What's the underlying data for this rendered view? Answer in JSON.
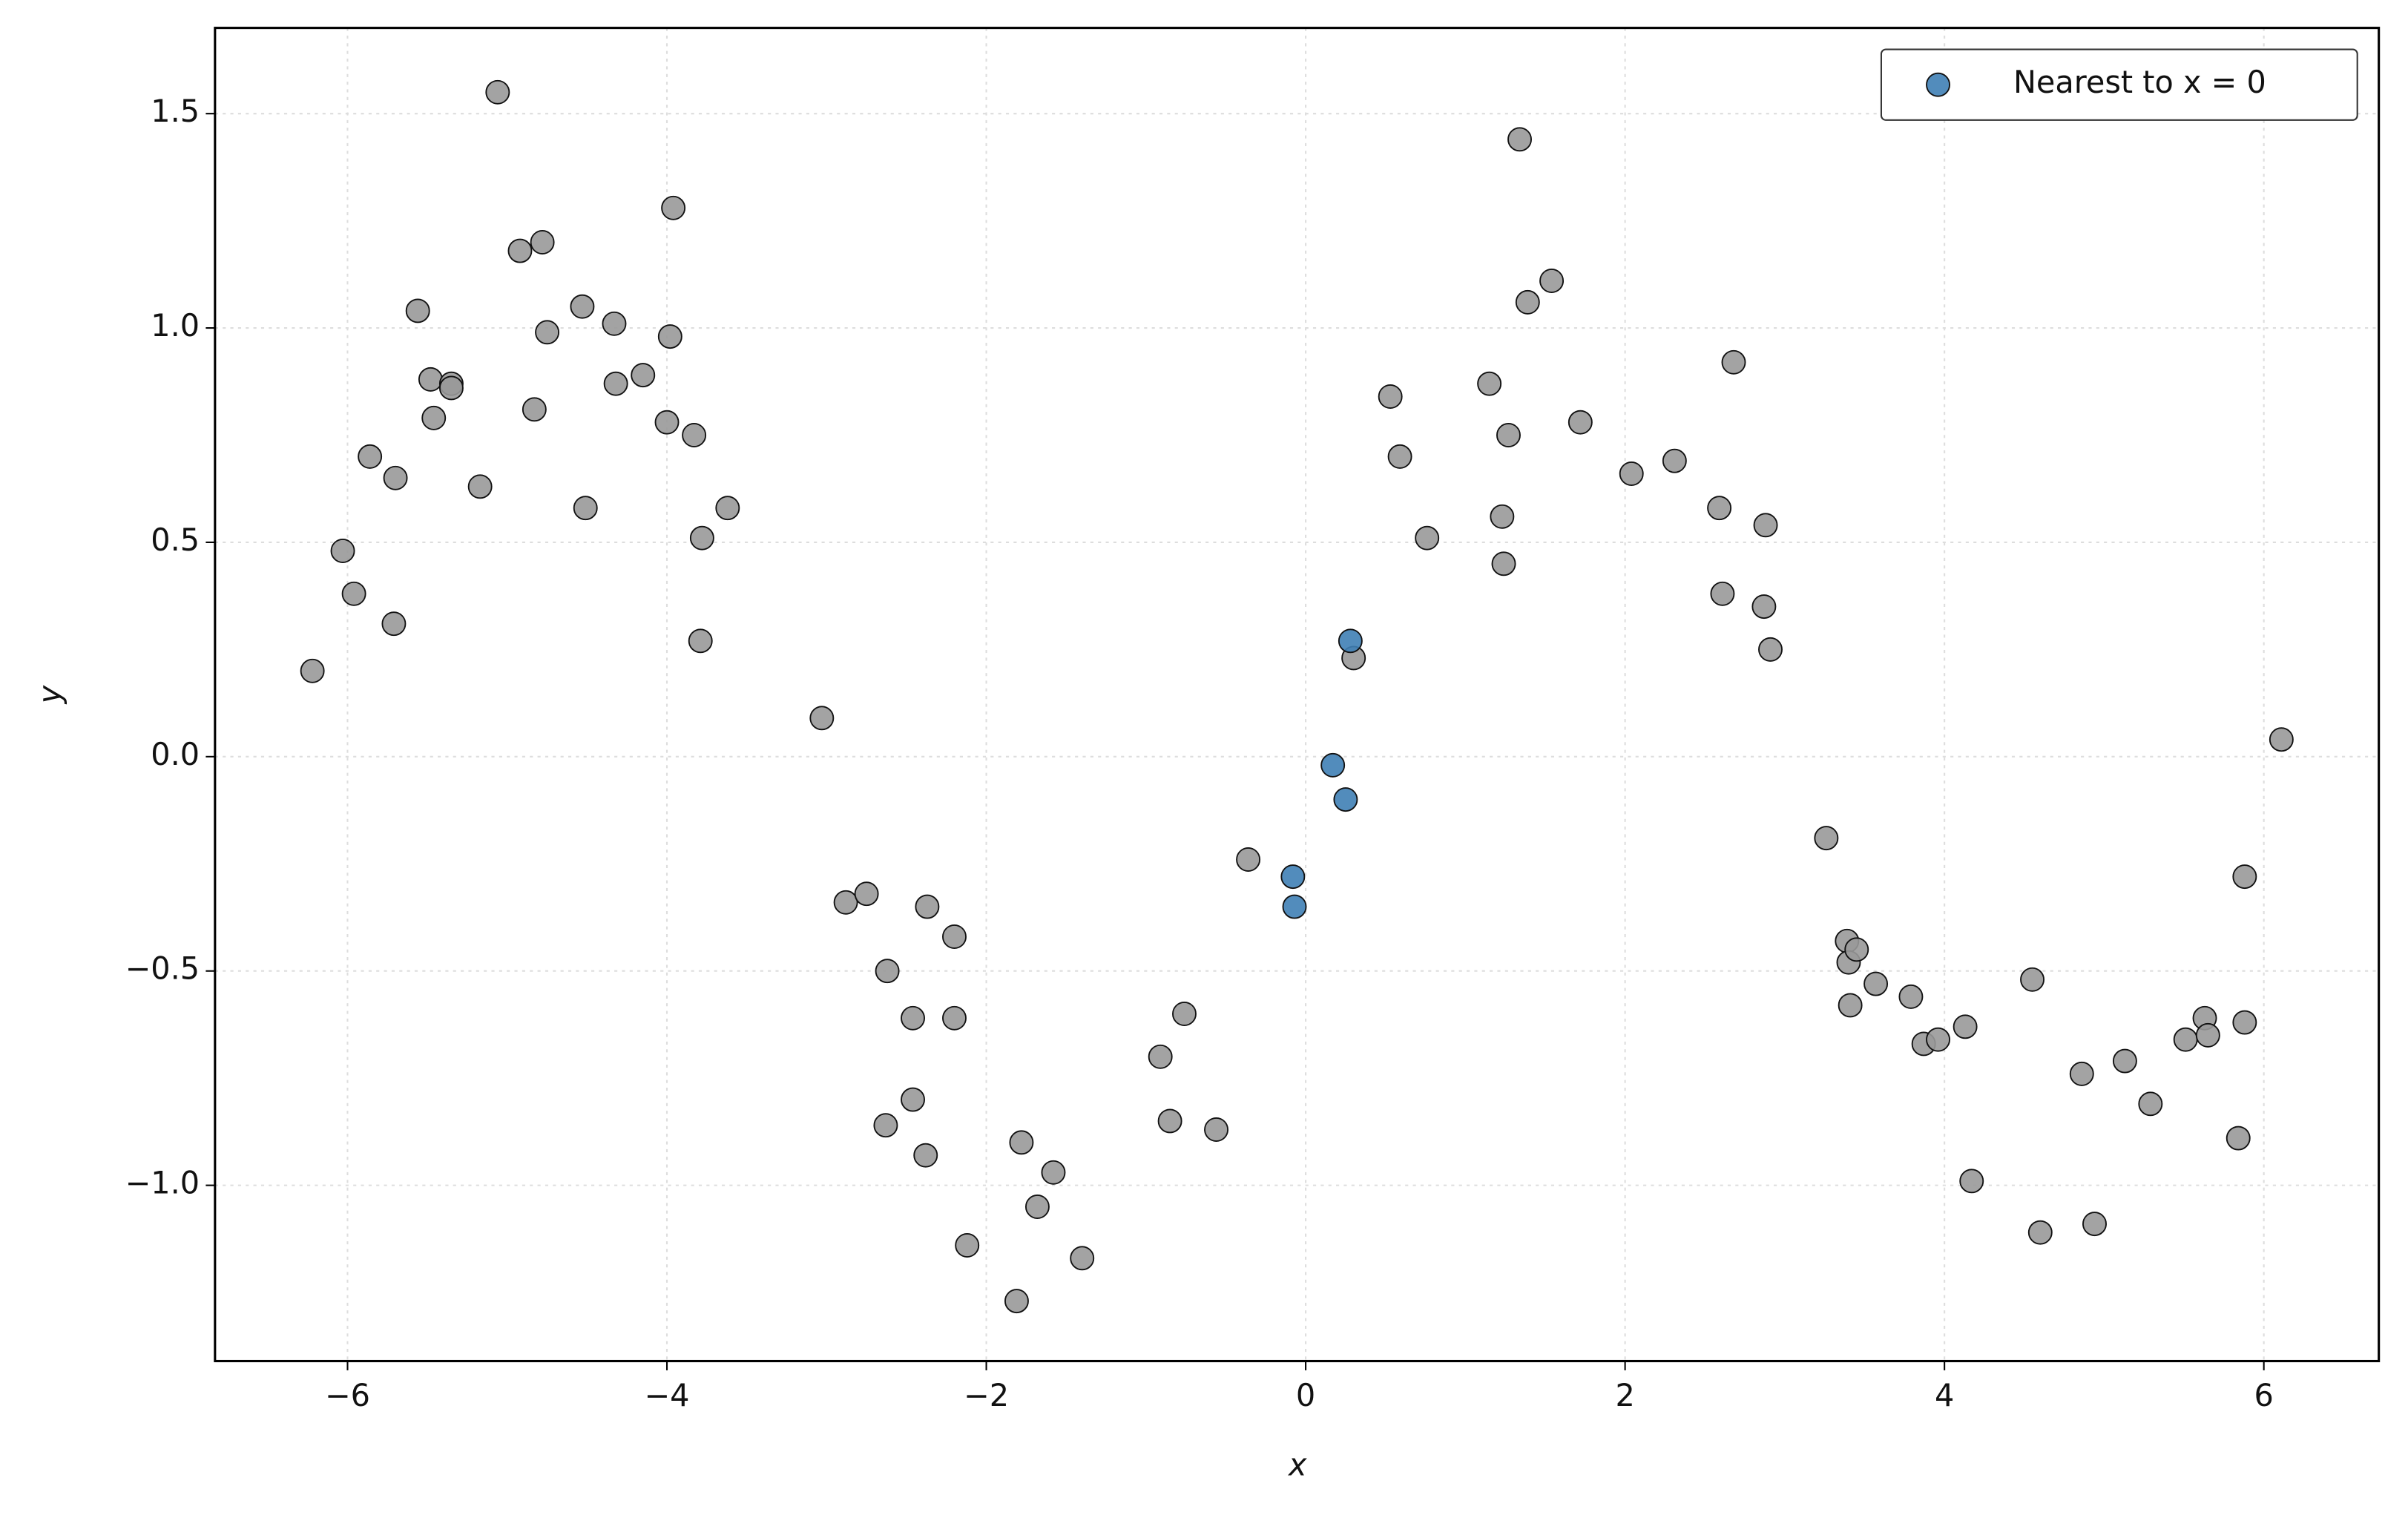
{
  "chart_data": {
    "type": "scatter",
    "xlabel": "x",
    "ylabel": "y",
    "xlim": [
      -6.83,
      6.72
    ],
    "ylim": [
      -1.41,
      1.7
    ],
    "xticks": [
      {
        "value": -6,
        "label": "−6"
      },
      {
        "value": -4,
        "label": "−4"
      },
      {
        "value": -2,
        "label": "−2"
      },
      0,
      2,
      4,
      6
    ],
    "yticks": [
      {
        "value": -1,
        "label": "−1.0"
      },
      {
        "value": -0.5,
        "label": "−0.5"
      },
      {
        "value": 0,
        "label": "0.0"
      },
      0.5,
      {
        "value": 1,
        "label": "1.0"
      },
      1.5
    ],
    "grid": true,
    "legend": "upper right",
    "series": [
      {
        "color": "#999999",
        "x": [
          -6.22,
          -6.03,
          -5.96,
          -5.86,
          -5.71,
          -5.7,
          -5.56,
          -5.48,
          -5.46,
          -5.35,
          -5.35,
          -5.17,
          -5.06,
          -4.92,
          -4.83,
          -4.78,
          -4.75,
          -4.53,
          -4.51,
          -4.33,
          -4.32,
          -4.15,
          -4.0,
          -3.98,
          -3.96,
          -3.83,
          -3.78,
          -3.79,
          -3.62,
          -3.03,
          -2.88,
          -2.75,
          -2.62,
          -2.63,
          -2.46,
          -2.46,
          -2.37,
          -2.38,
          -2.2,
          -2.2,
          -2.12,
          -1.81,
          -1.78,
          -1.68,
          -1.58,
          -1.4,
          -0.91,
          -0.85,
          -0.76,
          -0.56,
          -0.36,
          0.3,
          0.53,
          0.59,
          0.76,
          1.15,
          1.23,
          1.24,
          1.27,
          1.34,
          1.39,
          1.54,
          1.72,
          2.04,
          2.31,
          2.59,
          2.61,
          2.68,
          2.87,
          2.88,
          2.91,
          3.26,
          3.39,
          3.4,
          3.45,
          3.41,
          3.57,
          3.79,
          3.87,
          3.96,
          4.13,
          4.17,
          4.55,
          4.6,
          4.86,
          4.94,
          5.13,
          5.29,
          5.51,
          5.63,
          5.65,
          5.84,
          5.88,
          5.88,
          6.11
        ],
        "values": [
          0.2,
          0.48,
          0.38,
          0.7,
          0.31,
          0.65,
          1.04,
          0.88,
          0.79,
          0.87,
          0.86,
          0.63,
          1.55,
          1.18,
          0.81,
          1.2,
          0.99,
          1.05,
          0.58,
          1.01,
          0.87,
          0.89,
          0.78,
          0.98,
          1.28,
          0.75,
          0.51,
          0.27,
          0.58,
          0.09,
          -0.34,
          -0.32,
          -0.5,
          -0.86,
          -0.61,
          -0.8,
          -0.35,
          -0.93,
          -0.42,
          -0.61,
          -1.14,
          -1.27,
          -0.9,
          -1.05,
          -0.97,
          -1.17,
          -0.7,
          -0.85,
          -0.6,
          -0.87,
          -0.24,
          0.23,
          0.84,
          0.7,
          0.51,
          0.87,
          0.56,
          0.45,
          0.75,
          1.44,
          1.06,
          1.11,
          0.78,
          0.66,
          0.69,
          0.58,
          0.38,
          0.92,
          0.35,
          0.54,
          0.25,
          -0.19,
          -0.43,
          -0.48,
          -0.45,
          -0.58,
          -0.53,
          -0.56,
          -0.67,
          -0.66,
          -0.63,
          -0.99,
          -0.52,
          -1.11,
          -0.74,
          -1.09,
          -0.71,
          -0.81,
          -0.66,
          -0.61,
          -0.65,
          -0.89,
          -0.28,
          -0.62,
          0.04
        ]
      },
      {
        "name": "Nearest to x = 0",
        "color": "#3f7fb5",
        "x": [
          0.28,
          0.17,
          0.25,
          -0.08,
          -0.07
        ],
        "values": [
          0.27,
          -0.02,
          -0.1,
          -0.28,
          -0.35
        ]
      }
    ]
  }
}
